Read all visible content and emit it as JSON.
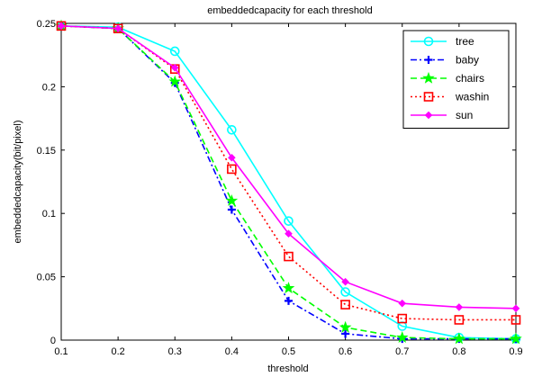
{
  "chart_data": {
    "type": "line",
    "title": "embeddedcapacity for each threshold",
    "xlabel": "threshold",
    "ylabel": "embeddedcapacity(bit/pixel)",
    "x": [
      0.1,
      0.2,
      0.3,
      0.4,
      0.5,
      0.6,
      0.7,
      0.8,
      0.9
    ],
    "xlim": [
      0.1,
      0.9
    ],
    "ylim": [
      0,
      0.25
    ],
    "x_ticks": [
      "0.1",
      "0.2",
      "0.3",
      "0.4",
      "0.5",
      "0.6",
      "0.7",
      "0.8",
      "0.9"
    ],
    "y_ticks": [
      "0",
      "0.05",
      "0.1",
      "0.15",
      "0.2",
      "0.25"
    ],
    "grid": false,
    "legend_position": "top-right",
    "series": [
      {
        "name": "tree",
        "color": "#00ffff",
        "line_style": "solid",
        "marker": "circle",
        "values": [
          0.248,
          0.247,
          0.228,
          0.166,
          0.094,
          0.038,
          0.011,
          0.002,
          0.001
        ]
      },
      {
        "name": "baby",
        "color": "#0000ff",
        "line_style": "dashdot",
        "marker": "plus",
        "values": [
          0.248,
          0.246,
          0.203,
          0.103,
          0.031,
          0.005,
          0.001,
          0.001,
          0.001
        ]
      },
      {
        "name": "chairs",
        "color": "#00ff00",
        "line_style": "dashed",
        "marker": "star",
        "values": [
          0.248,
          0.246,
          0.204,
          0.11,
          0.041,
          0.01,
          0.002,
          0.001,
          0.001
        ]
      },
      {
        "name": "washin",
        "color": "#ff0000",
        "line_style": "dotted",
        "marker": "square",
        "values": [
          0.248,
          0.246,
          0.214,
          0.135,
          0.066,
          0.028,
          0.017,
          0.016,
          0.016
        ]
      },
      {
        "name": "sun",
        "color": "#ff00ff",
        "line_style": "solid",
        "marker": "diamond",
        "values": [
          0.248,
          0.246,
          0.215,
          0.144,
          0.084,
          0.046,
          0.029,
          0.026,
          0.025
        ]
      }
    ]
  }
}
